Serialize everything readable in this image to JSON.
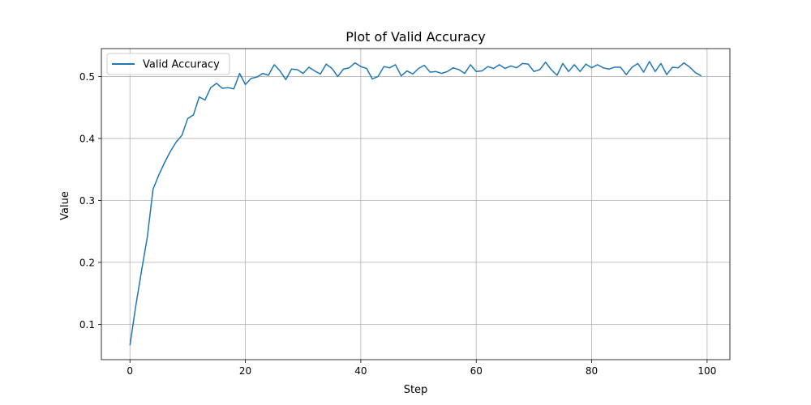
{
  "colors": {
    "series": "#1f77b4",
    "grid": "#b0b0b0",
    "axes": "#000000",
    "background": "#ffffff"
  },
  "chart_data": {
    "type": "line",
    "title": "Plot of Valid Accuracy",
    "xlabel": "Step",
    "ylabel": "Value",
    "xlim": [
      -4.95,
      103.95
    ],
    "ylim": [
      0.043,
      0.545
    ],
    "xticks": [
      0,
      20,
      40,
      60,
      80,
      100
    ],
    "yticks": [
      0.1,
      0.2,
      0.3,
      0.4,
      0.5
    ],
    "xtick_labels": [
      "0",
      "20",
      "40",
      "60",
      "80",
      "100"
    ],
    "ytick_labels": [
      "0.1",
      "0.2",
      "0.3",
      "0.4",
      "0.5"
    ],
    "grid": true,
    "legend": {
      "position": "top-left",
      "entries": [
        "Valid Accuracy"
      ]
    },
    "series": [
      {
        "name": "Valid Accuracy",
        "x": [
          0,
          1,
          2,
          3,
          4,
          5,
          6,
          7,
          8,
          9,
          10,
          11,
          12,
          13,
          14,
          15,
          16,
          17,
          18,
          19,
          20,
          21,
          22,
          23,
          24,
          25,
          26,
          27,
          28,
          29,
          30,
          31,
          32,
          33,
          34,
          35,
          36,
          37,
          38,
          39,
          40,
          41,
          42,
          43,
          44,
          45,
          46,
          47,
          48,
          49,
          50,
          51,
          52,
          53,
          54,
          55,
          56,
          57,
          58,
          59,
          60,
          61,
          62,
          63,
          64,
          65,
          66,
          67,
          68,
          69,
          70,
          71,
          72,
          73,
          74,
          75,
          76,
          77,
          78,
          79,
          80,
          81,
          82,
          83,
          84,
          85,
          86,
          87,
          88,
          89,
          90,
          91,
          92,
          93,
          94,
          95,
          96,
          97,
          98,
          99
        ],
        "values": [
          0.066,
          0.129,
          0.186,
          0.24,
          0.318,
          0.341,
          0.361,
          0.379,
          0.394,
          0.405,
          0.432,
          0.438,
          0.467,
          0.462,
          0.482,
          0.489,
          0.481,
          0.482,
          0.48,
          0.505,
          0.487,
          0.497,
          0.499,
          0.505,
          0.502,
          0.519,
          0.509,
          0.495,
          0.512,
          0.511,
          0.505,
          0.515,
          0.509,
          0.504,
          0.52,
          0.513,
          0.5,
          0.512,
          0.514,
          0.522,
          0.516,
          0.513,
          0.496,
          0.5,
          0.516,
          0.514,
          0.519,
          0.501,
          0.509,
          0.504,
          0.513,
          0.518,
          0.507,
          0.508,
          0.505,
          0.508,
          0.514,
          0.511,
          0.505,
          0.519,
          0.508,
          0.509,
          0.516,
          0.513,
          0.519,
          0.513,
          0.517,
          0.514,
          0.521,
          0.52,
          0.508,
          0.511,
          0.523,
          0.511,
          0.502,
          0.521,
          0.508,
          0.519,
          0.508,
          0.52,
          0.514,
          0.519,
          0.514,
          0.512,
          0.515,
          0.515,
          0.503,
          0.515,
          0.521,
          0.507,
          0.524,
          0.508,
          0.521,
          0.503,
          0.515,
          0.514,
          0.522,
          0.515,
          0.506,
          0.501
        ]
      }
    ]
  }
}
